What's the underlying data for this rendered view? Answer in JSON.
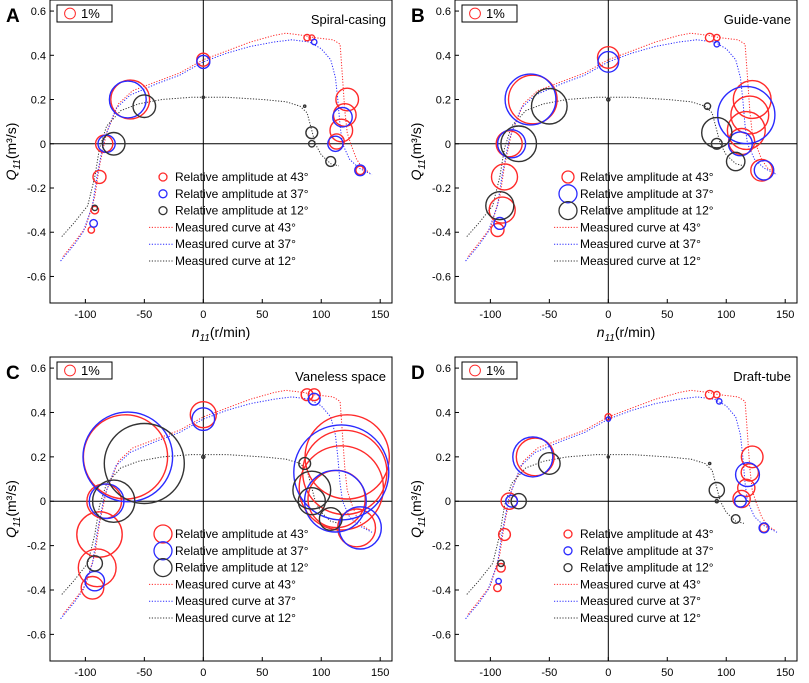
{
  "colors": {
    "c43": "#ff2a2a",
    "c37": "#2a2aff",
    "c12": "#333333",
    "axis": "#000000"
  },
  "labels": {
    "xlabel_main": "n",
    "xlabel_sub": "11",
    "xlabel_unit": "(r/min)",
    "ylabel_main": "Q",
    "ylabel_sub": "11",
    "ylabel_unit": "(m³/s)",
    "scale_label": "1%",
    "legend": [
      "Relative amplitude at 43°",
      "Relative amplitude at 37°",
      "Relative amplitude at 12°",
      "Measured curve at 43°",
      "Measured curve at 37°",
      "Measured curve at 12°"
    ]
  },
  "chart_data": [
    {
      "letter": "A",
      "title": "Spiral-casing",
      "type": "scatter",
      "xlim": [
        -130,
        160
      ],
      "ylim": [
        -0.72,
        0.65
      ],
      "xticks": [
        -100,
        -50,
        0,
        50,
        100,
        150
      ],
      "yticks": [
        -0.6,
        -0.4,
        -0.2,
        0.0,
        0.2,
        0.4,
        0.6
      ],
      "series": [
        {
          "name": "Relative amplitude at 43°",
          "points": [
            [
              -62,
              0.2,
              3.6
            ],
            [
              -84,
              0,
              1.6
            ],
            [
              -88,
              -0.15,
              1.2
            ],
            [
              -92,
              -0.3,
              0.7
            ],
            [
              -95,
              -0.39,
              0.6
            ],
            [
              0,
              0.38,
              1.2
            ],
            [
              88,
              0.48,
              0.6
            ],
            [
              92,
              0.48,
              0.5
            ],
            [
              122,
              0.2,
              2.1
            ],
            [
              120,
              0.13,
              2.1
            ],
            [
              117,
              0.06,
              2.1
            ],
            [
              113,
              0.01,
              1.4
            ],
            [
              133,
              -0.12,
              0.8
            ]
          ]
        },
        {
          "name": "Relative amplitude at 37°",
          "points": [
            [
              -64,
              0.2,
              3.4
            ],
            [
              -82,
              0,
              1.6
            ],
            [
              -93,
              -0.36,
              0.7
            ],
            [
              0,
              0.37,
              1.2
            ],
            [
              94,
              0.46,
              0.5
            ],
            [
              118,
              0.12,
              1.8
            ],
            [
              112,
              0,
              1.4
            ],
            [
              133,
              -0.12,
              1.0
            ]
          ]
        },
        {
          "name": "Relative amplitude at 12°",
          "points": [
            [
              -50,
              0.17,
              2.1
            ],
            [
              -76,
              0,
              2.1
            ],
            [
              -92,
              -0.29,
              0.5
            ],
            [
              0,
              0.21,
              0.2
            ],
            [
              86,
              0.17,
              0.2
            ],
            [
              92,
              0.05,
              1.1
            ],
            [
              92,
              0,
              0.6
            ],
            [
              108,
              -0.08,
              0.9
            ]
          ]
        }
      ]
    },
    {
      "letter": "B",
      "title": "Guide-vane",
      "type": "scatter",
      "xlim": [
        -130,
        160
      ],
      "ylim": [
        -0.72,
        0.65
      ],
      "xticks": [
        -100,
        -50,
        0,
        50,
        100,
        150
      ],
      "yticks": [
        -0.6,
        -0.4,
        -0.2,
        0.0,
        0.2,
        0.4,
        0.6
      ],
      "series": [
        {
          "name": "Relative amplitude at 43°",
          "points": [
            [
              -64,
              0.2,
              4.5
            ],
            [
              -84,
              0,
              2.4
            ],
            [
              -88,
              -0.15,
              2.4
            ],
            [
              -90,
              -0.3,
              2.4
            ],
            [
              -94,
              -0.39,
              1.2
            ],
            [
              0,
              0.39,
              2.0
            ],
            [
              86,
              0.48,
              0.8
            ],
            [
              92,
              0.48,
              0.6
            ],
            [
              122,
              0.2,
              3.5
            ],
            [
              120,
              0.13,
              3.5
            ],
            [
              117,
              0.06,
              3.5
            ],
            [
              113,
              0.01,
              2.4
            ],
            [
              130,
              -0.12,
              2.0
            ]
          ]
        },
        {
          "name": "Relative amplitude at 37°",
          "points": [
            [
              -66,
              0.2,
              4.7
            ],
            [
              -82,
              0,
              2.6
            ],
            [
              -92,
              -0.36,
              1.1
            ],
            [
              0,
              0.37,
              1.9
            ],
            [
              92,
              0.45,
              0.5
            ],
            [
              117,
              0.13,
              5.3
            ],
            [
              112,
              0,
              2.2
            ],
            [
              132,
              -0.12,
              1.8
            ]
          ]
        },
        {
          "name": "Relative amplitude at 12°",
          "points": [
            [
              -50,
              0.17,
              3.3
            ],
            [
              -76,
              0,
              3.3
            ],
            [
              -92,
              -0.28,
              2.6
            ],
            [
              0,
              0.2,
              0.3
            ],
            [
              84,
              0.17,
              0.6
            ],
            [
              92,
              0.05,
              2.8
            ],
            [
              92,
              0,
              1.0
            ],
            [
              108,
              -0.08,
              1.7
            ]
          ]
        }
      ]
    },
    {
      "letter": "C",
      "title": "Vaneless space",
      "type": "scatter",
      "xlim": [
        -130,
        160
      ],
      "ylim": [
        -0.72,
        0.65
      ],
      "xticks": [
        -100,
        -50,
        0,
        50,
        100,
        150
      ],
      "yticks": [
        -0.6,
        -0.4,
        -0.2,
        0.0,
        0.2,
        0.4,
        0.6
      ],
      "series": [
        {
          "name": "Relative amplitude at 43°",
          "points": [
            [
              -66,
              0.2,
              7.8
            ],
            [
              -84,
              0,
              3.2
            ],
            [
              -88,
              -0.15,
              4.2
            ],
            [
              -90,
              -0.3,
              3.5
            ],
            [
              -94,
              -0.39,
              2.1
            ],
            [
              0,
              0.39,
              2.4
            ],
            [
              88,
              0.48,
              1.1
            ],
            [
              94,
              0.48,
              1.1
            ],
            [
              122,
              0.2,
              7.8
            ],
            [
              120,
              0.13,
              7.8
            ],
            [
              117,
              0.06,
              7.8
            ],
            [
              113,
              0.01,
              5.3
            ],
            [
              130,
              -0.12,
              3.5
            ]
          ]
        },
        {
          "name": "Relative amplitude at 37°",
          "points": [
            [
              -64,
              0.2,
              8.3
            ],
            [
              -82,
              0,
              3.2
            ],
            [
              -92,
              -0.36,
              1.8
            ],
            [
              0,
              0.37,
              2.1
            ],
            [
              94,
              0.46,
              1.1
            ],
            [
              117,
              0.13,
              8.8
            ],
            [
              112,
              0,
              5.7
            ],
            [
              133,
              -0.12,
              3.9
            ]
          ]
        },
        {
          "name": "Relative amplitude at 12°",
          "points": [
            [
              -50,
              0.17,
              7.4
            ],
            [
              -76,
              0,
              3.9
            ],
            [
              -92,
              -0.28,
              1.4
            ],
            [
              0,
              0.2,
              0.3
            ],
            [
              86,
              0.17,
              1.1
            ],
            [
              92,
              0.05,
              3.5
            ],
            [
              92,
              0,
              2.5
            ],
            [
              108,
              -0.08,
              2.1
            ]
          ]
        }
      ]
    },
    {
      "letter": "D",
      "title": "Draft-tube",
      "type": "scatter",
      "xlim": [
        -130,
        160
      ],
      "ylim": [
        -0.72,
        0.65
      ],
      "xticks": [
        -100,
        -50,
        0,
        50,
        100,
        150
      ],
      "yticks": [
        -0.6,
        -0.4,
        -0.2,
        0.0,
        0.2,
        0.4,
        0.6
      ],
      "series": [
        {
          "name": "Relative amplitude at 43°",
          "points": [
            [
              -62,
              0.2,
              3.5
            ],
            [
              -84,
              0,
              1.5
            ],
            [
              -88,
              -0.15,
              1.1
            ],
            [
              -91,
              -0.3,
              0.8
            ],
            [
              -94,
              -0.39,
              0.7
            ],
            [
              0,
              0.38,
              0.6
            ],
            [
              86,
              0.48,
              0.8
            ],
            [
              92,
              0.48,
              0.6
            ],
            [
              122,
              0.2,
              2.0
            ],
            [
              120,
              0.13,
              1.6
            ],
            [
              117,
              0.06,
              1.6
            ],
            [
              113,
              0.01,
              1.6
            ],
            [
              132,
              -0.12,
              0.8
            ]
          ]
        },
        {
          "name": "Relative amplitude at 37°",
          "points": [
            [
              -64,
              0.2,
              3.7
            ],
            [
              -82,
              0,
              1.1
            ],
            [
              -93,
              -0.36,
              0.5
            ],
            [
              0,
              0.37,
              0.4
            ],
            [
              94,
              0.45,
              0.5
            ],
            [
              118,
              0.12,
              2.2
            ],
            [
              112,
              0,
              1.1
            ],
            [
              132,
              -0.12,
              0.9
            ]
          ]
        },
        {
          "name": "Relative amplitude at 12°",
          "points": [
            [
              -50,
              0.17,
              2.0
            ],
            [
              -76,
              0,
              1.4
            ],
            [
              -91,
              -0.28,
              0.6
            ],
            [
              0,
              0.2,
              0.2
            ],
            [
              86,
              0.17,
              0.2
            ],
            [
              92,
              0.05,
              1.4
            ],
            [
              92,
              0,
              0.3
            ],
            [
              108,
              -0.08,
              0.8
            ]
          ]
        }
      ]
    }
  ],
  "curves": {
    "c43": [
      [
        -119,
        -0.51
      ],
      [
        -110,
        -0.45
      ],
      [
        -100,
        -0.38
      ],
      [
        -92,
        -0.24
      ],
      [
        -88,
        -0.1
      ],
      [
        -82,
        0.05
      ],
      [
        -72,
        0.18
      ],
      [
        -60,
        0.24
      ],
      [
        -40,
        0.28
      ],
      [
        -20,
        0.32
      ],
      [
        0,
        0.38
      ],
      [
        20,
        0.42
      ],
      [
        40,
        0.46
      ],
      [
        60,
        0.49
      ],
      [
        70,
        0.5
      ],
      [
        85,
        0.49
      ],
      [
        94,
        0.48
      ],
      [
        110,
        0.47
      ],
      [
        116,
        0.45
      ],
      [
        118,
        0.3
      ],
      [
        120,
        0.15
      ],
      [
        122,
        0.05
      ],
      [
        125,
        0
      ],
      [
        130,
        -0.07
      ],
      [
        135,
        -0.11
      ],
      [
        141,
        -0.13
      ]
    ],
    "c37": [
      [
        -121,
        -0.53
      ],
      [
        -110,
        -0.46
      ],
      [
        -102,
        -0.4
      ],
      [
        -94,
        -0.28
      ],
      [
        -90,
        -0.14
      ],
      [
        -84,
        0.02
      ],
      [
        -74,
        0.16
      ],
      [
        -62,
        0.22
      ],
      [
        -40,
        0.27
      ],
      [
        -20,
        0.31
      ],
      [
        0,
        0.37
      ],
      [
        20,
        0.41
      ],
      [
        40,
        0.44
      ],
      [
        60,
        0.46
      ],
      [
        75,
        0.47
      ],
      [
        90,
        0.46
      ],
      [
        100,
        0.43
      ],
      [
        108,
        0.38
      ],
      [
        112,
        0.3
      ],
      [
        114,
        0.2
      ],
      [
        116,
        0.08
      ],
      [
        118,
        0
      ],
      [
        124,
        -0.07
      ],
      [
        132,
        -0.11
      ],
      [
        143,
        -0.14
      ]
    ],
    "c12": [
      [
        -120,
        -0.42
      ],
      [
        -110,
        -0.36
      ],
      [
        -98,
        -0.28
      ],
      [
        -92,
        -0.15
      ],
      [
        -88,
        -0.02
      ],
      [
        -82,
        0.08
      ],
      [
        -70,
        0.15
      ],
      [
        -55,
        0.18
      ],
      [
        -35,
        0.2
      ],
      [
        -10,
        0.21
      ],
      [
        20,
        0.21
      ],
      [
        50,
        0.2
      ],
      [
        70,
        0.19
      ],
      [
        82,
        0.17
      ],
      [
        88,
        0.14
      ],
      [
        92,
        0.06
      ],
      [
        95,
        0
      ],
      [
        100,
        -0.05
      ],
      [
        108,
        -0.09
      ],
      [
        115,
        -0.1
      ]
    ]
  }
}
